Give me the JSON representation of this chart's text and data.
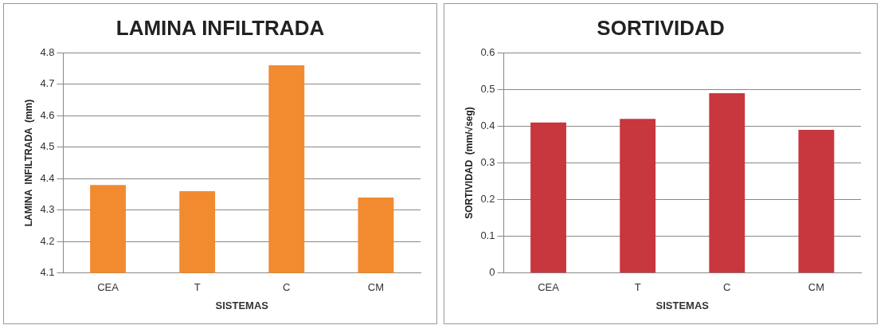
{
  "chart_data": [
    {
      "type": "bar",
      "title": "LAMINA INFILTRADA",
      "xlabel": "SISTEMAS",
      "ylabel": "LAMINA  INFILTRADA  (mm)",
      "categories": [
        "CEA",
        "T",
        "C",
        "CM"
      ],
      "values": [
        4.38,
        4.36,
        4.76,
        4.34
      ],
      "color": "#f28a30",
      "ylim": [
        4.1,
        4.8
      ],
      "yticks": [
        4.1,
        4.2,
        4.3,
        4.4,
        4.5,
        4.6,
        4.7,
        4.8
      ],
      "grid": "y",
      "legend": false
    },
    {
      "type": "bar",
      "title": "SORTIVIDAD",
      "xlabel": "SISTEMAS",
      "ylabel": "SORTIVIDAD  (mm/√seg)",
      "categories": [
        "CEA",
        "T",
        "C",
        "CM"
      ],
      "values": [
        0.41,
        0.42,
        0.49,
        0.39
      ],
      "color": "#c8363e",
      "ylim": [
        0,
        0.6
      ],
      "yticks": [
        0,
        0.1,
        0.2,
        0.3,
        0.4,
        0.5,
        0.6
      ],
      "grid": "y",
      "legend": false
    }
  ]
}
